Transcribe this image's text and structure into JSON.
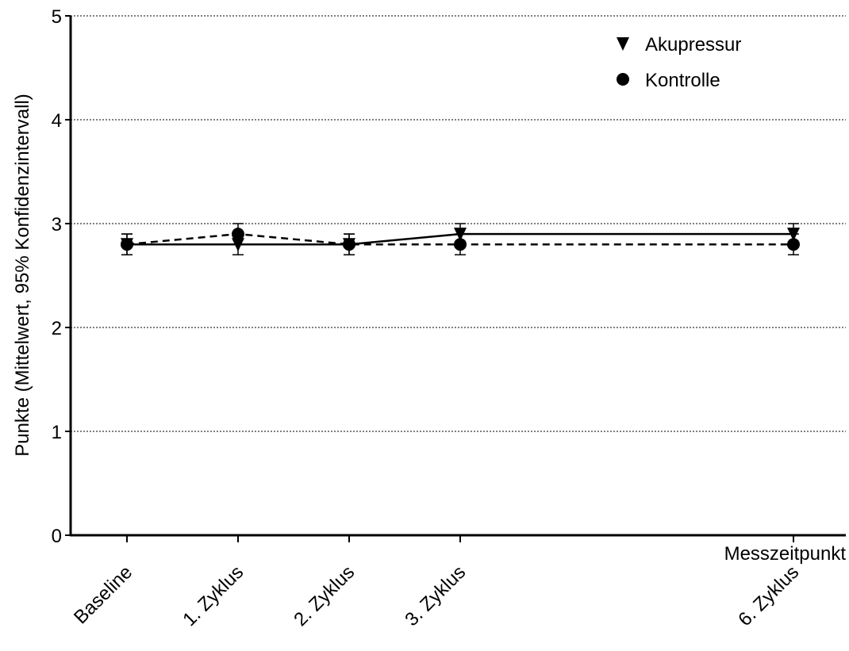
{
  "chart_data": {
    "type": "line",
    "xlabel": "Messzeitpunkt",
    "ylabel": "Punkte (Mittelwert, 95% Konfidenzintervall)",
    "ylim": [
      0,
      5
    ],
    "yticks": [
      "0",
      "1",
      "2",
      "3",
      "4",
      "5"
    ],
    "categories": [
      "Baseline",
      "1. Zyklus",
      "2. Zyklus",
      "3. Zyklus",
      "6. Zyklus"
    ],
    "x": [
      0,
      1,
      2,
      3,
      6
    ],
    "grid": "horizontal dotted",
    "legend_position": "top-right",
    "series": [
      {
        "name": "Akupressur",
        "marker": "triangle-down",
        "line": "solid",
        "values": [
          2.8,
          2.8,
          2.8,
          2.9,
          2.9
        ],
        "ci_low": [
          2.7,
          2.7,
          2.7,
          2.8,
          2.8
        ],
        "ci_high": [
          2.9,
          2.9,
          2.9,
          3.0,
          3.0
        ]
      },
      {
        "name": "Kontrolle",
        "marker": "circle",
        "line": "dashed",
        "values": [
          2.8,
          2.9,
          2.8,
          2.8,
          2.8
        ],
        "ci_low": [
          2.7,
          2.8,
          2.7,
          2.7,
          2.7
        ],
        "ci_high": [
          2.9,
          3.0,
          2.9,
          2.9,
          2.9
        ]
      }
    ],
    "colors": {
      "ink": "#000000",
      "grid": "#000000",
      "background": "#ffffff"
    }
  }
}
